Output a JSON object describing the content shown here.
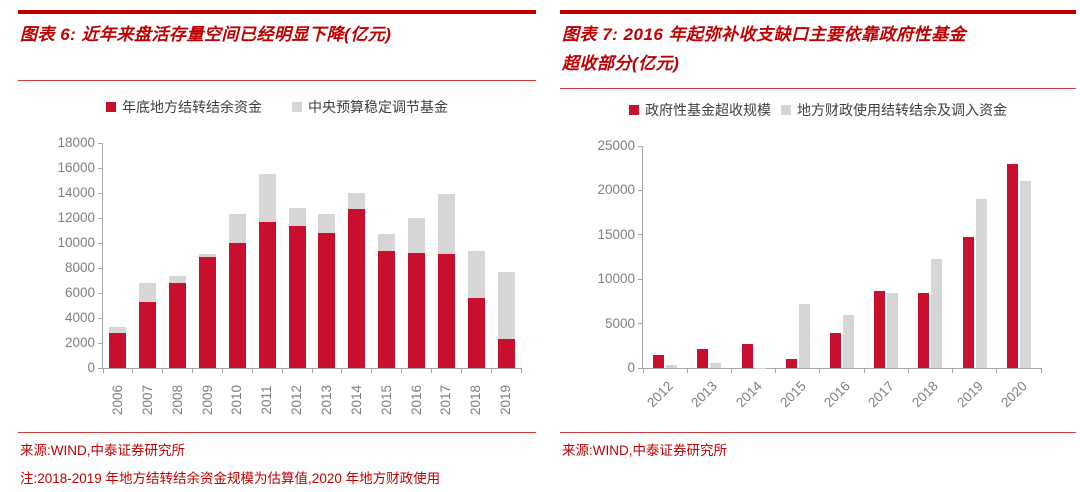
{
  "colors": {
    "accent_red": "#C00000",
    "bar_red": "#C8102E",
    "bar_gray": "#D6D6D6",
    "axis_gray": "#A6A6A6",
    "axis_label_gray": "#7F7F7F"
  },
  "footers": {
    "left_source": "来源:WIND,中泰证券研究所",
    "left_note": "注:2018-2019 年地方结转结余资金规模为估算值,2020 年地方财政使用",
    "right_source": "来源:WIND,中泰证券研究所"
  },
  "chart_data": [
    {
      "type": "bar",
      "subtype": "stacked",
      "title": "图表 6: 近年来盘活存量空间已经明显下降(亿元)",
      "title_lines": [
        "图表 6: 近年来盘活存量空间已经明显下降(亿元)"
      ],
      "unit": "亿元",
      "categories": [
        "2006",
        "2007",
        "2008",
        "2009",
        "2010",
        "2011",
        "2012",
        "2013",
        "2014",
        "2015",
        "2016",
        "2017",
        "2018",
        "2019"
      ],
      "series": [
        {
          "name": "年底地方结转结余资金",
          "color": "#C8102E",
          "values": [
            2800,
            5300,
            6800,
            8900,
            10000,
            11700,
            11400,
            10800,
            12700,
            9400,
            9200,
            9100,
            5600,
            2300
          ]
        },
        {
          "name": "中央预算稳定调节基金",
          "color": "#D6D6D6",
          "values": [
            500,
            1500,
            600,
            200,
            2300,
            3800,
            1400,
            1500,
            1300,
            1300,
            2800,
            4800,
            3800,
            5400
          ]
        }
      ],
      "xlabel": "",
      "ylabel": "",
      "ylim": [
        0,
        18000
      ],
      "yticks": [
        0,
        2000,
        4000,
        6000,
        8000,
        10000,
        12000,
        14000,
        16000,
        18000
      ],
      "grid": false,
      "legend_position": "top",
      "x_tick_label_rotation": -90
    },
    {
      "type": "bar",
      "subtype": "grouped",
      "title": "图表 7: 2016 年起弥补收支缺口主要依靠政府性基金超收部分(亿元)",
      "title_lines": [
        "图表 7: 2016 年起弥补收支缺口主要依靠政府性基金",
        "超收部分(亿元)"
      ],
      "unit": "亿元",
      "categories": [
        "2012",
        "2013",
        "2014",
        "2015",
        "2016",
        "2017",
        "2018",
        "2019",
        "2020"
      ],
      "series": [
        {
          "name": "政府性基金超收规模",
          "color": "#C8102E",
          "values": [
            1500,
            2100,
            2700,
            1000,
            3900,
            8700,
            8400,
            14700,
            23000
          ]
        },
        {
          "name": "地方财政使用结转结余及调入资金",
          "color": "#D6D6D6",
          "values": [
            300,
            600,
            50,
            7200,
            6000,
            8400,
            12300,
            19000,
            21100
          ]
        }
      ],
      "xlabel": "",
      "ylabel": "",
      "ylim": [
        0,
        25000
      ],
      "yticks": [
        0,
        5000,
        10000,
        15000,
        20000,
        25000
      ],
      "grid": false,
      "legend_position": "top",
      "x_tick_label_rotation": -45
    }
  ]
}
